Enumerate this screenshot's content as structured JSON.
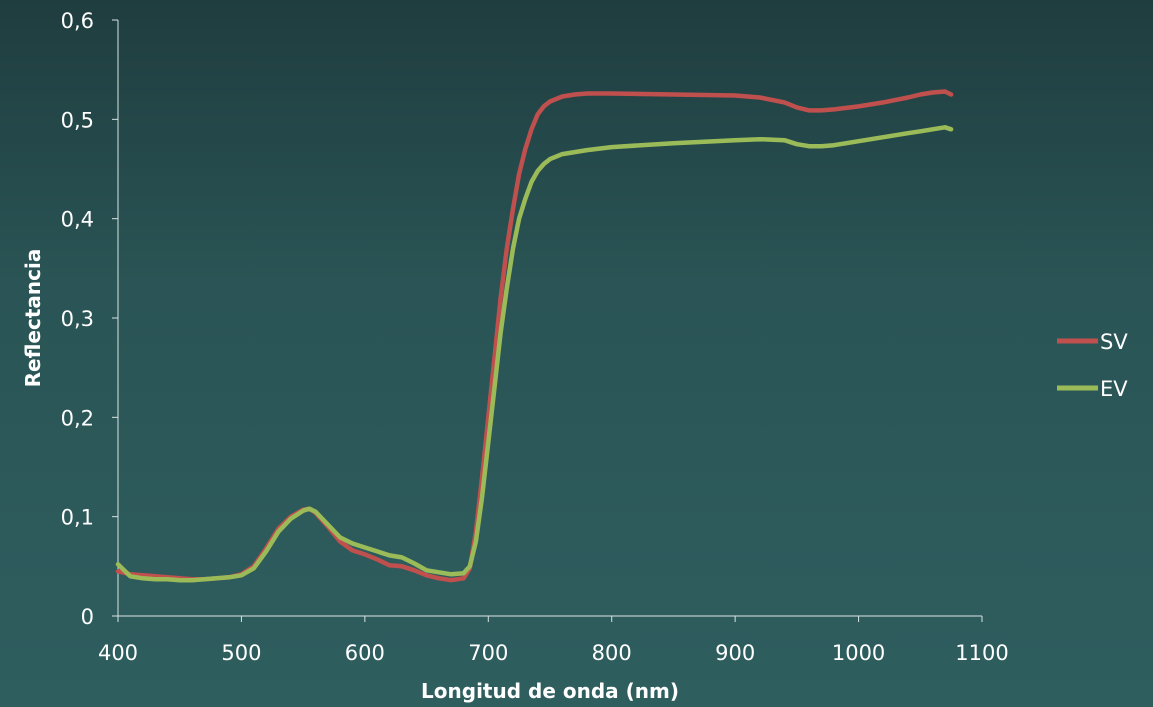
{
  "chart_data": {
    "type": "line",
    "title": "",
    "xlabel": "Longitud de onda (nm)",
    "ylabel": "Reflectancia",
    "xlim": [
      400,
      1100
    ],
    "ylim": [
      0,
      0.6
    ],
    "x_ticks": [
      400,
      500,
      600,
      700,
      800,
      900,
      1000,
      1100
    ],
    "x_tick_labels": [
      "400",
      "500",
      "600",
      "700",
      "800",
      "900",
      "1000",
      "1100"
    ],
    "y_ticks": [
      0,
      0.1,
      0.2,
      0.3,
      0.4,
      0.5,
      0.6
    ],
    "y_tick_labels": [
      "0",
      "0,1",
      "0,2",
      "0,3",
      "0,4",
      "0,5",
      "0,6"
    ],
    "grid": false,
    "legend_position": "right",
    "series": [
      {
        "name": "SV",
        "color": "#c0504d",
        "x": [
          400,
          410,
          420,
          430,
          440,
          450,
          460,
          470,
          480,
          490,
          500,
          510,
          520,
          530,
          540,
          550,
          555,
          560,
          570,
          580,
          590,
          600,
          610,
          620,
          630,
          640,
          650,
          660,
          670,
          680,
          685,
          690,
          695,
          700,
          705,
          710,
          715,
          720,
          725,
          730,
          735,
          740,
          745,
          750,
          760,
          770,
          780,
          800,
          850,
          900,
          920,
          940,
          950,
          960,
          970,
          980,
          1000,
          1020,
          1040,
          1050,
          1060,
          1070,
          1075
        ],
        "y": [
          0.045,
          0.042,
          0.041,
          0.04,
          0.039,
          0.038,
          0.037,
          0.037,
          0.038,
          0.039,
          0.042,
          0.05,
          0.068,
          0.088,
          0.1,
          0.107,
          0.108,
          0.104,
          0.09,
          0.075,
          0.066,
          0.062,
          0.057,
          0.051,
          0.05,
          0.046,
          0.041,
          0.038,
          0.036,
          0.038,
          0.048,
          0.085,
          0.14,
          0.2,
          0.26,
          0.32,
          0.37,
          0.41,
          0.445,
          0.47,
          0.49,
          0.505,
          0.513,
          0.518,
          0.523,
          0.525,
          0.526,
          0.526,
          0.525,
          0.524,
          0.522,
          0.517,
          0.512,
          0.509,
          0.509,
          0.51,
          0.513,
          0.517,
          0.522,
          0.525,
          0.527,
          0.528,
          0.525
        ]
      },
      {
        "name": "EV",
        "color": "#9bbb59",
        "x": [
          400,
          410,
          420,
          430,
          440,
          450,
          460,
          470,
          480,
          490,
          500,
          510,
          520,
          530,
          540,
          550,
          555,
          560,
          570,
          580,
          590,
          600,
          610,
          620,
          630,
          640,
          650,
          660,
          670,
          680,
          685,
          690,
          695,
          700,
          705,
          710,
          715,
          720,
          725,
          730,
          735,
          740,
          745,
          750,
          760,
          770,
          780,
          800,
          850,
          900,
          920,
          940,
          950,
          960,
          970,
          980,
          1000,
          1020,
          1040,
          1050,
          1060,
          1070,
          1075
        ],
        "y": [
          0.052,
          0.04,
          0.038,
          0.037,
          0.037,
          0.036,
          0.036,
          0.037,
          0.038,
          0.039,
          0.041,
          0.048,
          0.065,
          0.085,
          0.098,
          0.106,
          0.108,
          0.105,
          0.092,
          0.079,
          0.073,
          0.069,
          0.065,
          0.061,
          0.059,
          0.053,
          0.046,
          0.044,
          0.042,
          0.043,
          0.05,
          0.075,
          0.12,
          0.175,
          0.23,
          0.285,
          0.33,
          0.37,
          0.4,
          0.42,
          0.437,
          0.448,
          0.455,
          0.46,
          0.465,
          0.467,
          0.469,
          0.472,
          0.476,
          0.479,
          0.48,
          0.479,
          0.475,
          0.473,
          0.473,
          0.474,
          0.478,
          0.482,
          0.486,
          0.488,
          0.49,
          0.492,
          0.49
        ]
      }
    ]
  }
}
